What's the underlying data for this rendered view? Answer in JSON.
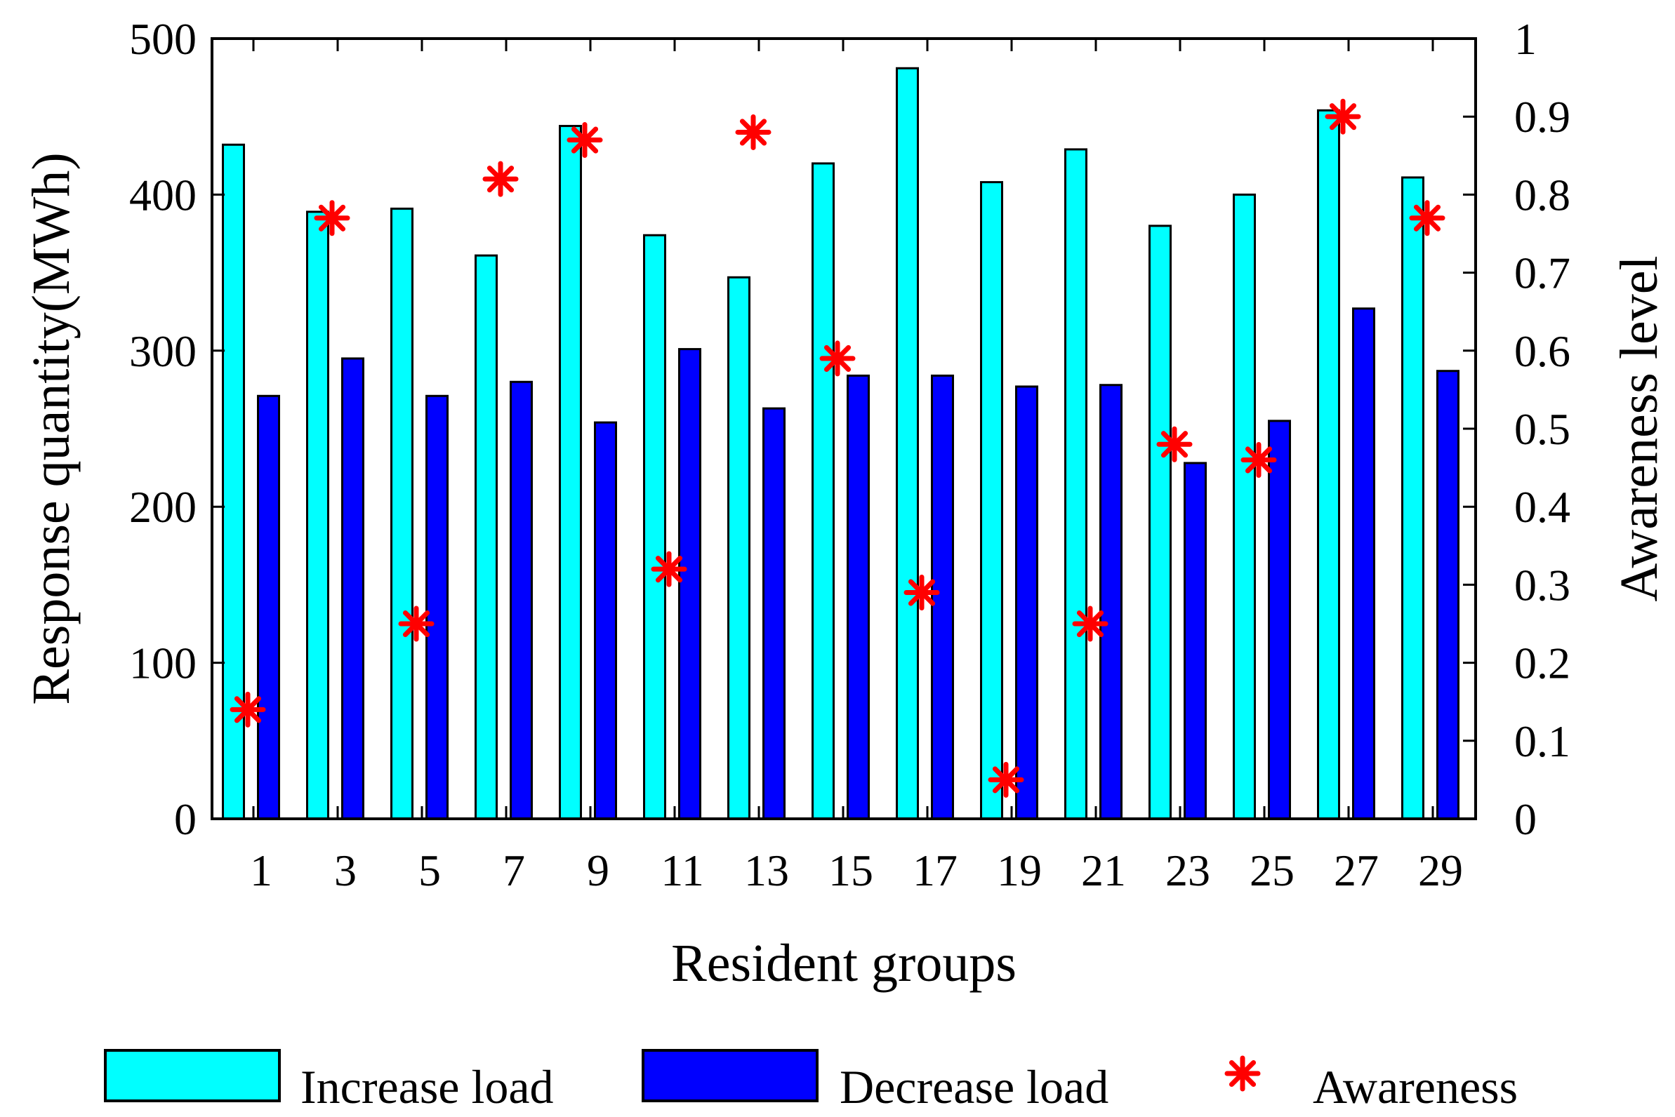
{
  "chart_data": {
    "type": "bar",
    "xlabel": "Resident groups",
    "ylabel": "Response quantity(MWh)",
    "y2label": "Awareness level",
    "ylim": [
      0,
      500
    ],
    "y2lim": [
      0,
      1
    ],
    "yticks": [
      0,
      100,
      200,
      300,
      400,
      500
    ],
    "y2ticks": [
      "0",
      "0.1",
      "0.2",
      "0.3",
      "0.4",
      "0.5",
      "0.6",
      "0.7",
      "0.8",
      "0.9",
      "1"
    ],
    "categories": [
      "1",
      "3",
      "5",
      "7",
      "9",
      "11",
      "13",
      "15",
      "17",
      "19",
      "21",
      "23",
      "25",
      "27",
      "29"
    ],
    "series": [
      {
        "name": "Increase load",
        "type": "bar",
        "axis": "left",
        "color": "#00ffff",
        "values": [
          432,
          389,
          391,
          361,
          444,
          374,
          347,
          420,
          481,
          408,
          429,
          380,
          400,
          454,
          411
        ]
      },
      {
        "name": "Decrease load",
        "type": "bar",
        "axis": "left",
        "color": "#0000ff",
        "values": [
          271,
          295,
          271,
          280,
          254,
          301,
          263,
          284,
          284,
          277,
          278,
          228,
          255,
          327,
          287
        ]
      },
      {
        "name": "Awareness",
        "type": "scatter",
        "axis": "right",
        "color": "#ff0000",
        "marker": "*",
        "values": [
          0.14,
          0.77,
          0.25,
          0.82,
          0.87,
          0.32,
          0.88,
          0.59,
          0.29,
          0.05,
          0.25,
          0.48,
          0.46,
          0.9,
          0.77
        ]
      }
    ],
    "legend": {
      "position": "bottom",
      "entries": [
        "Increase load",
        "Decrease load",
        "Awareness"
      ]
    }
  }
}
